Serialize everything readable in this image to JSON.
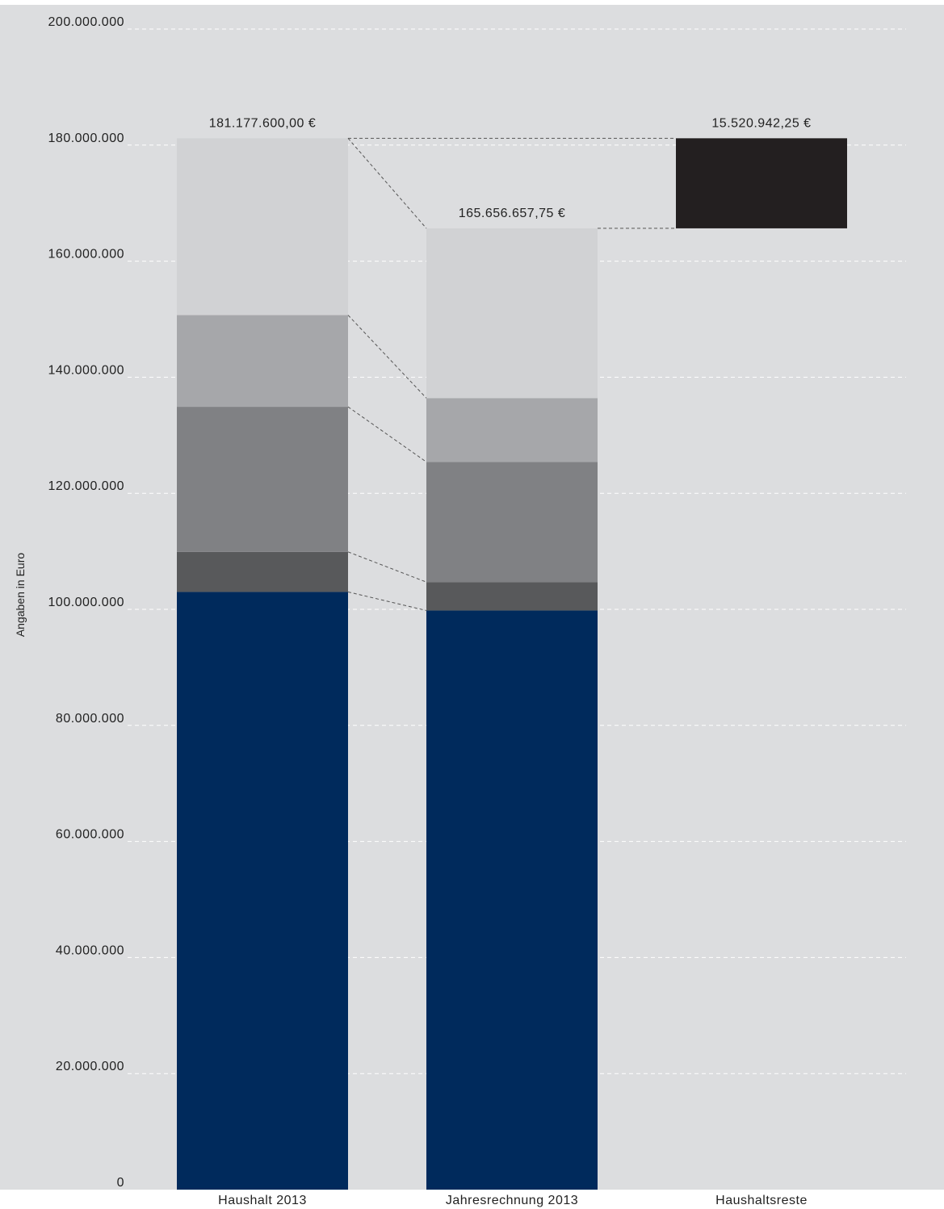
{
  "chart_data": {
    "type": "bar",
    "stacked": true,
    "ylabel": "Angaben in Euro",
    "ylim": [
      0,
      200000000
    ],
    "yticks": [
      0,
      20000000,
      40000000,
      60000000,
      80000000,
      100000000,
      120000000,
      140000000,
      160000000,
      180000000,
      200000000
    ],
    "ytick_labels": [
      "0",
      "20.000.000",
      "40.000.000",
      "60.000.000",
      "80.000.000",
      "100.000.000",
      "120.000.000",
      "140.000.000",
      "160.000.000",
      "180.000.000",
      "200.000.000"
    ],
    "grid": true,
    "categories": [
      "Haushalt 2013",
      "Jahresrechnung 2013",
      "Haushaltsreste"
    ],
    "totals_labels": [
      "181.177.600,00 €",
      "165.656.657,75 €",
      "15.520.942,25 €"
    ],
    "series": [
      {
        "color": "#002a5c",
        "values": [
          103000000,
          99800000,
          null
        ]
      },
      {
        "color": "#58595b",
        "values": [
          6900000,
          4900000,
          null
        ]
      },
      {
        "color": "#808184",
        "values": [
          25000000,
          20700000,
          null
        ]
      },
      {
        "color": "#a6a7aa",
        "values": [
          15800000,
          11000000,
          null
        ]
      },
      {
        "color": "#d1d2d4",
        "values": [
          30477600,
          29256657.75,
          null
        ]
      }
    ],
    "floating_bar": {
      "category": "Haushaltsreste",
      "from": 165656657.75,
      "to": 181177600,
      "color": "#231f20"
    },
    "colors": {
      "background": "#dcdddf",
      "grid": "#ffffff",
      "connector": "#555555"
    }
  }
}
